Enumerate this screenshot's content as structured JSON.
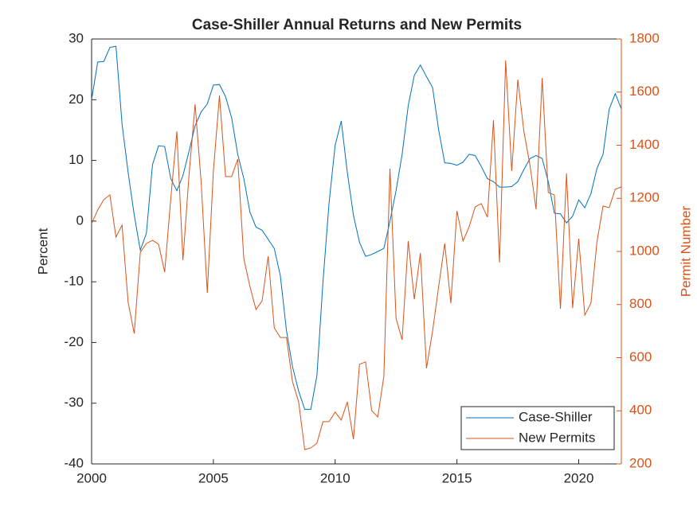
{
  "chart_data": {
    "type": "line",
    "title": "Case-Shiller Annual Returns and New Permits",
    "y_label": "Percent",
    "y2_label": "Permit Number",
    "x": [
      2000,
      2000.25,
      2000.5,
      2000.75,
      2001,
      2001.25,
      2001.5,
      2001.75,
      2002,
      2002.25,
      2002.5,
      2002.75,
      2003,
      2003.25,
      2003.5,
      2003.75,
      2004,
      2004.25,
      2004.5,
      2004.75,
      2005,
      2005.25,
      2005.5,
      2005.75,
      2006,
      2006.25,
      2006.5,
      2006.75,
      2007,
      2007.25,
      2007.5,
      2007.75,
      2008,
      2008.25,
      2008.5,
      2008.75,
      2009,
      2009.25,
      2009.5,
      2009.75,
      2010,
      2010.25,
      2010.5,
      2010.75,
      2011,
      2011.25,
      2011.5,
      2011.75,
      2012,
      2012.25,
      2012.5,
      2012.75,
      2013,
      2013.25,
      2013.5,
      2013.75,
      2014,
      2014.25,
      2014.5,
      2014.75,
      2015,
      2015.25,
      2015.5,
      2015.75,
      2016,
      2016.25,
      2016.5,
      2016.75,
      2017,
      2017.25,
      2017.5,
      2017.75,
      2018,
      2018.25,
      2018.5,
      2018.75,
      2019,
      2019.25,
      2019.5,
      2019.75,
      2020,
      2020.25,
      2020.5,
      2020.75,
      2021,
      2021.25,
      2021.5,
      2021.75
    ],
    "series": [
      {
        "name": "Case-Shiller",
        "color": "#0072BD",
        "axis": "y",
        "values": [
          20,
          26.2,
          26.3,
          28.6,
          28.8,
          16,
          8,
          1,
          -4.8,
          -2,
          9.3,
          12.4,
          12.3,
          7,
          5,
          7.5,
          11.5,
          15.7,
          18,
          19.3,
          22.4,
          22.5,
          20.5,
          17,
          11,
          7,
          1.5,
          -1,
          -1.5,
          -3,
          -4.5,
          -9,
          -18,
          -24,
          -28,
          -31,
          -31,
          -25.5,
          -10,
          3,
          12.5,
          16.5,
          8,
          1,
          -3.5,
          -5.8,
          -5.5,
          -5,
          -4.5,
          0,
          5,
          11,
          19,
          24,
          25.7,
          23.8,
          22,
          15,
          9.6,
          9.5,
          9.2,
          9.7,
          11,
          10.8,
          9,
          7,
          6.5,
          5.6,
          5.6,
          5.7,
          6.5,
          8.5,
          10.3,
          10.8,
          10.3,
          6.5,
          1.3,
          1.2,
          -0.3,
          0.8,
          3.5,
          2.2,
          4.5,
          8.7,
          11,
          18.4,
          21,
          18.5
        ]
      },
      {
        "name": "New Permits",
        "color": "#D95319",
        "axis": "y2",
        "values": [
          1105,
          1156,
          1195,
          1213,
          1054,
          1099,
          808,
          691,
          997,
          1030,
          1042,
          1027,
          922,
          1198,
          1452,
          967,
          1288,
          1554,
          1258,
          844,
          1303,
          1587,
          1282,
          1282,
          1348,
          973,
          868,
          781,
          814,
          982,
          712,
          676,
          676,
          509,
          434,
          254,
          260,
          278,
          359,
          359,
          395,
          365,
          434,
          293,
          575,
          584,
          401,
          377,
          530,
          1312,
          748,
          667,
          1039,
          820,
          994,
          560,
          700,
          868,
          1030,
          805,
          1153,
          1039,
          1093,
          1168,
          1180,
          1129,
          1494,
          958,
          1719,
          1303,
          1647,
          1452,
          1324,
          1159,
          1653,
          1222,
          1213,
          784,
          1294,
          787,
          1048,
          760,
          805,
          1036,
          1171,
          1165,
          1234,
          1243
        ]
      }
    ],
    "xlim": [
      2000,
      2021.75
    ],
    "xticks": [
      2000,
      2005,
      2010,
      2015,
      2020
    ],
    "ylim": [
      -40,
      30
    ],
    "yticks": [
      -40,
      -30,
      -20,
      -10,
      0,
      10,
      20,
      30
    ],
    "y2lim": [
      200,
      1800
    ],
    "y2ticks": [
      200,
      400,
      600,
      800,
      1000,
      1200,
      1400,
      1600,
      1800
    ],
    "legend": "lower right",
    "grid": false
  }
}
